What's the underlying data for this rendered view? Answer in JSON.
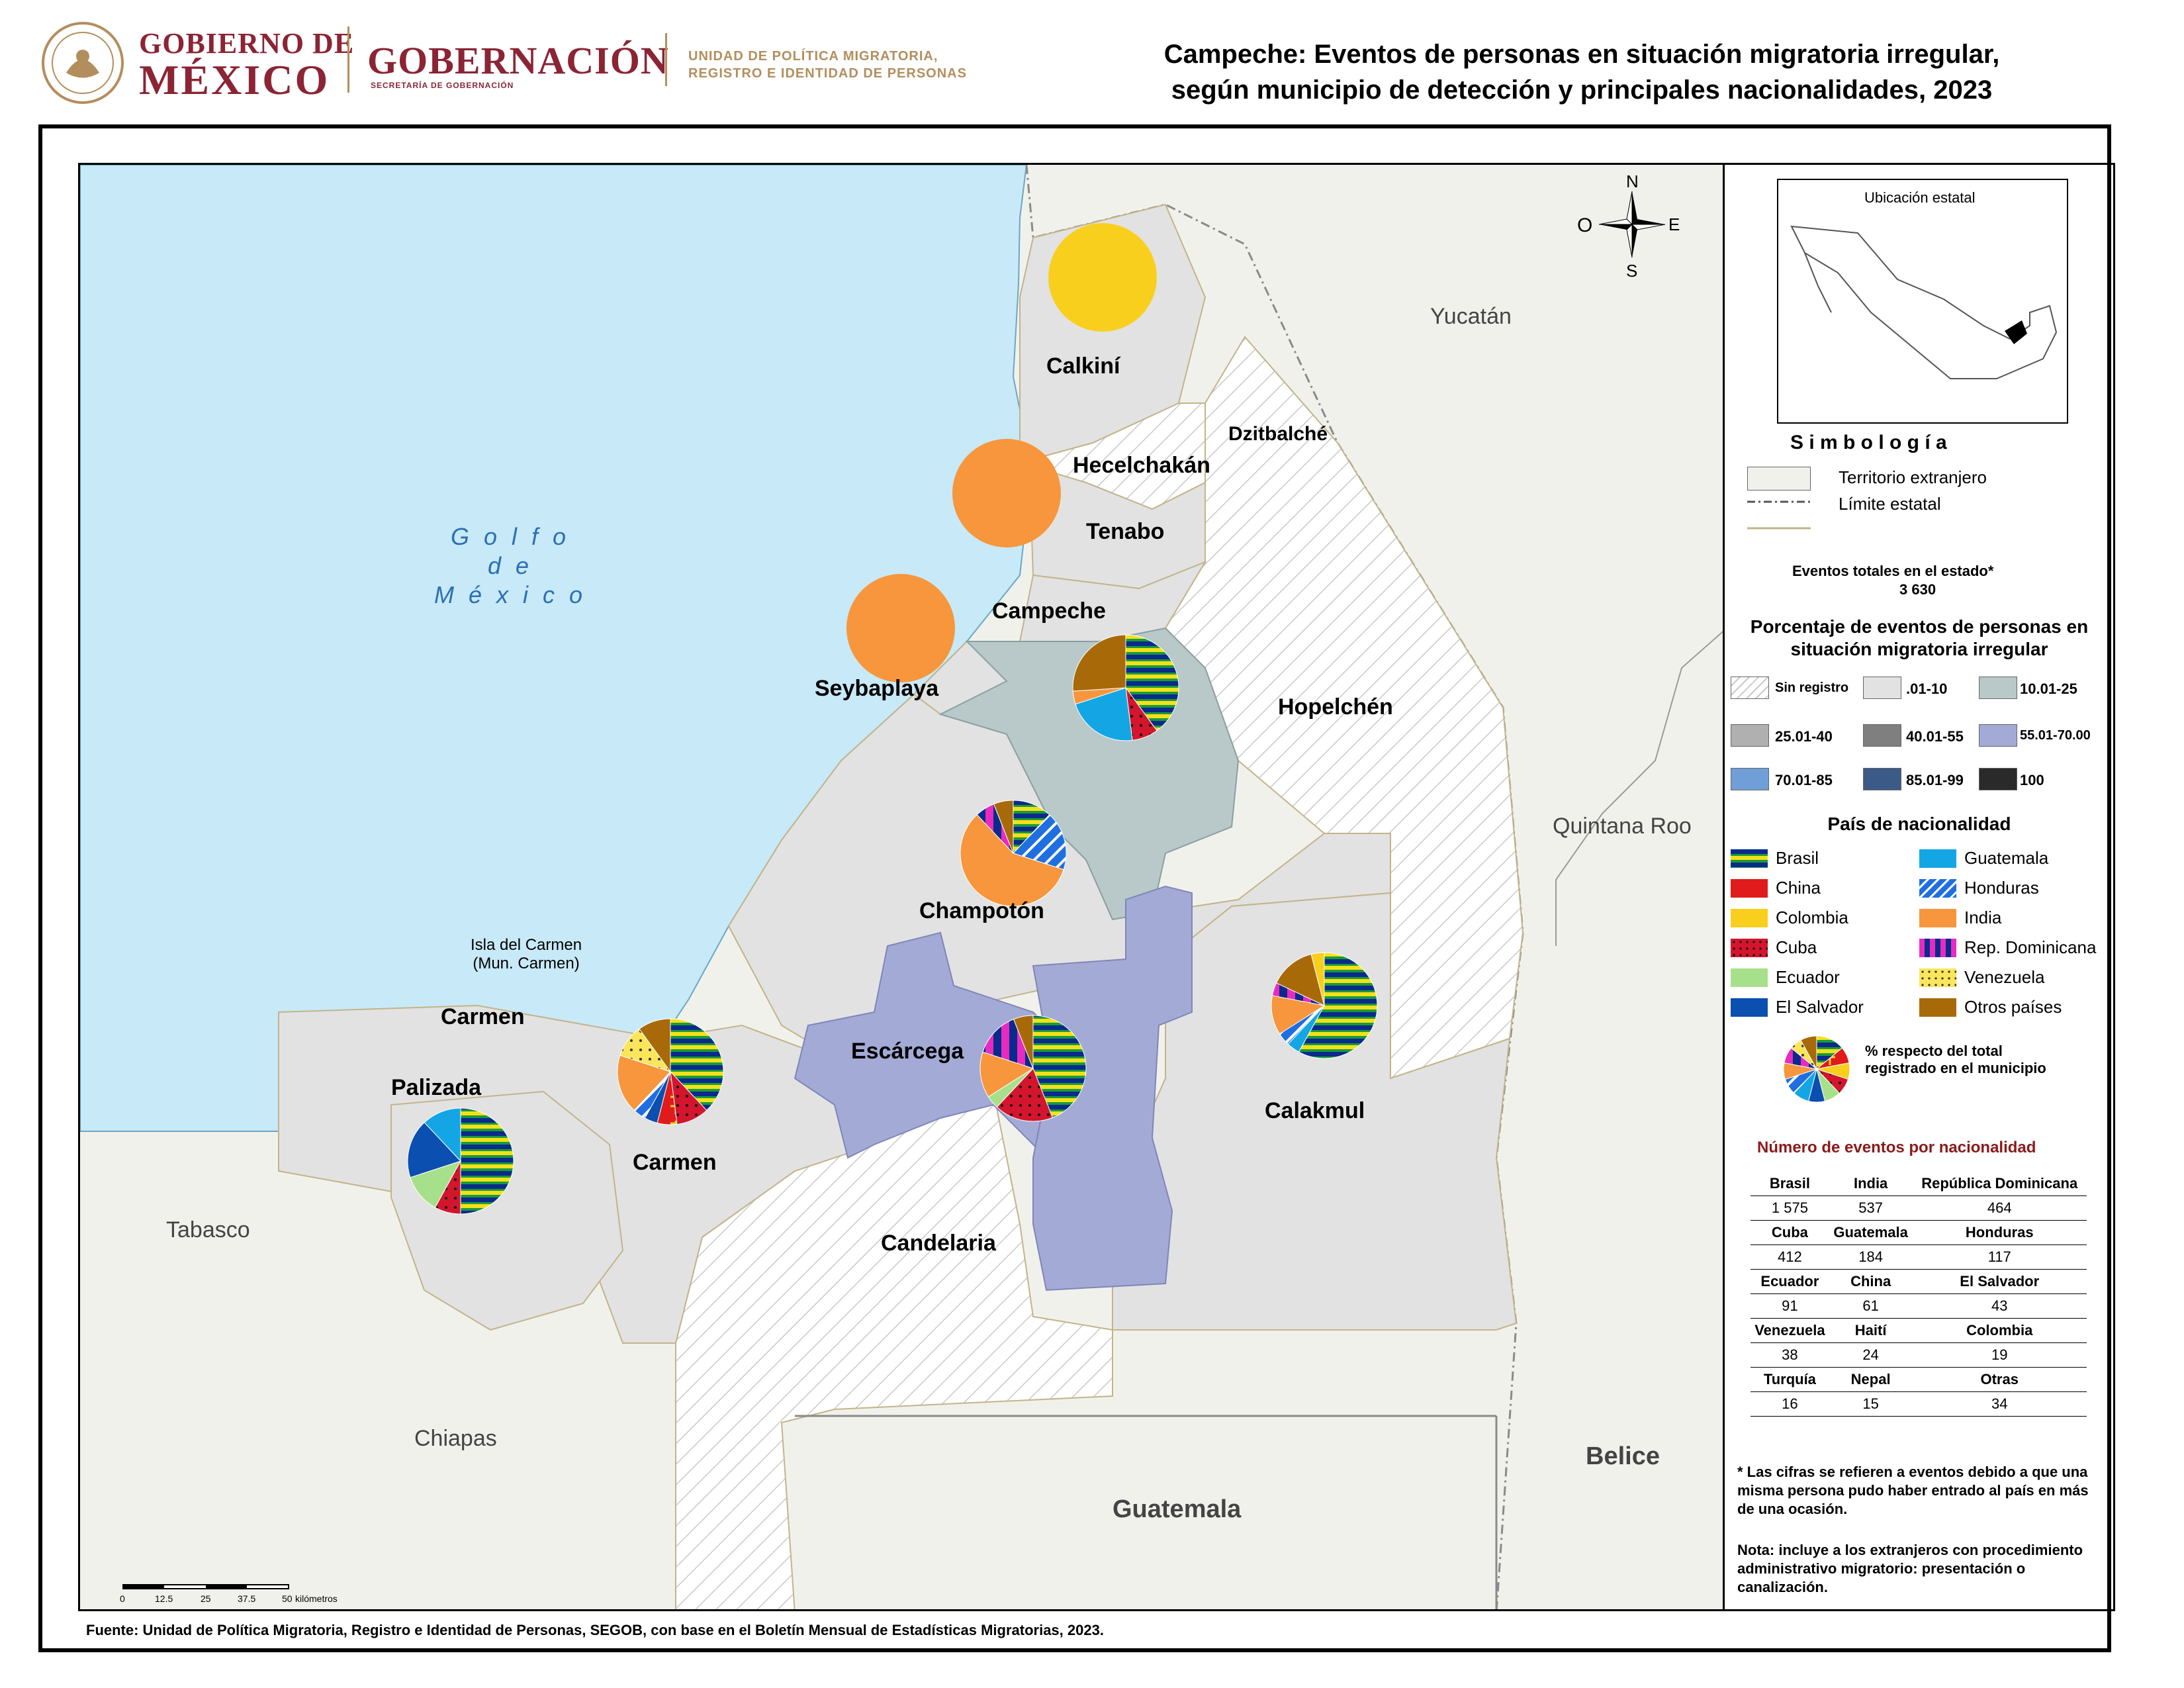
{
  "header": {
    "gobierno_l1": "GOBIERNO DE",
    "gobierno_l2": "MÉXICO",
    "gobernacion": "GOBERNACIÓN",
    "gobernacion_sub": "SECRETARÍA DE GOBERNACIÓN",
    "unidad_l1": "UNIDAD DE POLÍTICA MIGRATORIA,",
    "unidad_l2": "REGISTRO E IDENTIDAD DE PERSONAS",
    "title_l1": "Campeche: Eventos de personas en situación migratoria irregular,",
    "title_l2": "según municipio de detección y principales nacionalidades, 2023"
  },
  "map": {
    "gulf": [
      "G o l f o",
      "d e",
      "M é x i c o"
    ],
    "countries": {
      "yucatan": "Yucatán",
      "quintana_roo": "Quintana Roo",
      "tabasco": "Tabasco",
      "chiapas": "Chiapas",
      "belice": "Belice",
      "guatemala": "Guatemala"
    },
    "municipalities": {
      "calkini": "Calkiní",
      "hecelchakan": "Hecelchakán",
      "dzitbalche": "Dzitbalché",
      "tenabo": "Tenabo",
      "campeche": "Campeche",
      "seybaplaya": "Seybaplaya",
      "hopelchen": "Hopelchén",
      "champoton": "Champotón",
      "carmen": "Carmen",
      "carmen_island": "Carmen",
      "palizada": "Palizada",
      "escarcega": "Escárcega",
      "calakmul": "Calakmul",
      "candelaria": "Candelaria"
    },
    "isla_l1": "Isla del Carmen",
    "isla_l2": "(Mun. Carmen)",
    "compass": {
      "n": "N",
      "s": "S",
      "e": "E",
      "o": "O"
    },
    "scale": {
      "ticks": [
        "0",
        "12.5",
        "25",
        "37.5",
        "50"
      ],
      "unit": "kilómetros"
    }
  },
  "legend": {
    "location_title": "Ubicación estatal",
    "simbologia": "S i m b o l o g í a",
    "territorio": "Territorio extranjero",
    "limite": "Límite estatal",
    "total_label": "Eventos totales en el estado*",
    "total_value": "3 630",
    "pct_title_l1": "Porcentaje de eventos de personas en",
    "pct_title_l2": "situación migratoria irregular",
    "pct_classes": [
      {
        "label": "Sin registro",
        "color": "hatch"
      },
      {
        "label": ".01-10",
        "color": "#e2e2e2"
      },
      {
        "label": "10.01-25",
        "color": "#b9c8c8"
      },
      {
        "label": "25.01-40",
        "color": "#b0b0b0"
      },
      {
        "label": "40.01-55",
        "color": "#7f7f7f"
      },
      {
        "label": "55.01-70.00",
        "color": "#a3aad6"
      },
      {
        "label": "70.01-85",
        "color": "#6f9fd6"
      },
      {
        "label": "85.01-99",
        "color": "#3c5a88"
      },
      {
        "label": "100",
        "color": "#2a2a2a"
      }
    ],
    "nat_title": "País de nacionalidad",
    "nationalities": [
      {
        "label": "Brasil",
        "key": "brasil"
      },
      {
        "label": "Guatemala",
        "key": "guatemala"
      },
      {
        "label": "China",
        "key": "china"
      },
      {
        "label": "Honduras",
        "key": "honduras"
      },
      {
        "label": "Colombia",
        "key": "colombia"
      },
      {
        "label": "India",
        "key": "india"
      },
      {
        "label": "Cuba",
        "key": "cuba"
      },
      {
        "label": "Rep. Dominicana",
        "key": "repdom"
      },
      {
        "label": "Ecuador",
        "key": "ecuador"
      },
      {
        "label": "Venezuela",
        "key": "venezuela"
      },
      {
        "label": "El Salvador",
        "key": "elsalvador"
      },
      {
        "label": "Otros países",
        "key": "otros"
      }
    ],
    "pie_note_l1": "% respecto del total",
    "pie_note_l2": "registrado en el municipio",
    "table_title": "Número de eventos por nacionalidad",
    "table": [
      [
        "Brasil",
        "India",
        "República Dominicana"
      ],
      [
        "1 575",
        "537",
        "464"
      ],
      [
        "Cuba",
        "Guatemala",
        "Honduras"
      ],
      [
        "412",
        "184",
        "117"
      ],
      [
        "Ecuador",
        "China",
        "El Salvador"
      ],
      [
        "91",
        "61",
        "43"
      ],
      [
        "Venezuela",
        "Haití",
        "Colombia"
      ],
      [
        "38",
        "24",
        "19"
      ],
      [
        "Turquía",
        "Nepal",
        "Otras"
      ],
      [
        "16",
        "15",
        "34"
      ]
    ],
    "footnote": "* Las cifras se refieren a eventos debido a que una misma persona pudo haber entrado al país en más de una ocasión.",
    "nota": "Nota: incluye a los extranjeros con procedimiento administrativo migratorio: presentación o canalización."
  },
  "source": "Fuente: Unidad de Política Migratoria, Registro e Identidad de Personas, SEGOB, con base en el Boletín Mensual de Estadísticas Migratorias, 2023."
}
